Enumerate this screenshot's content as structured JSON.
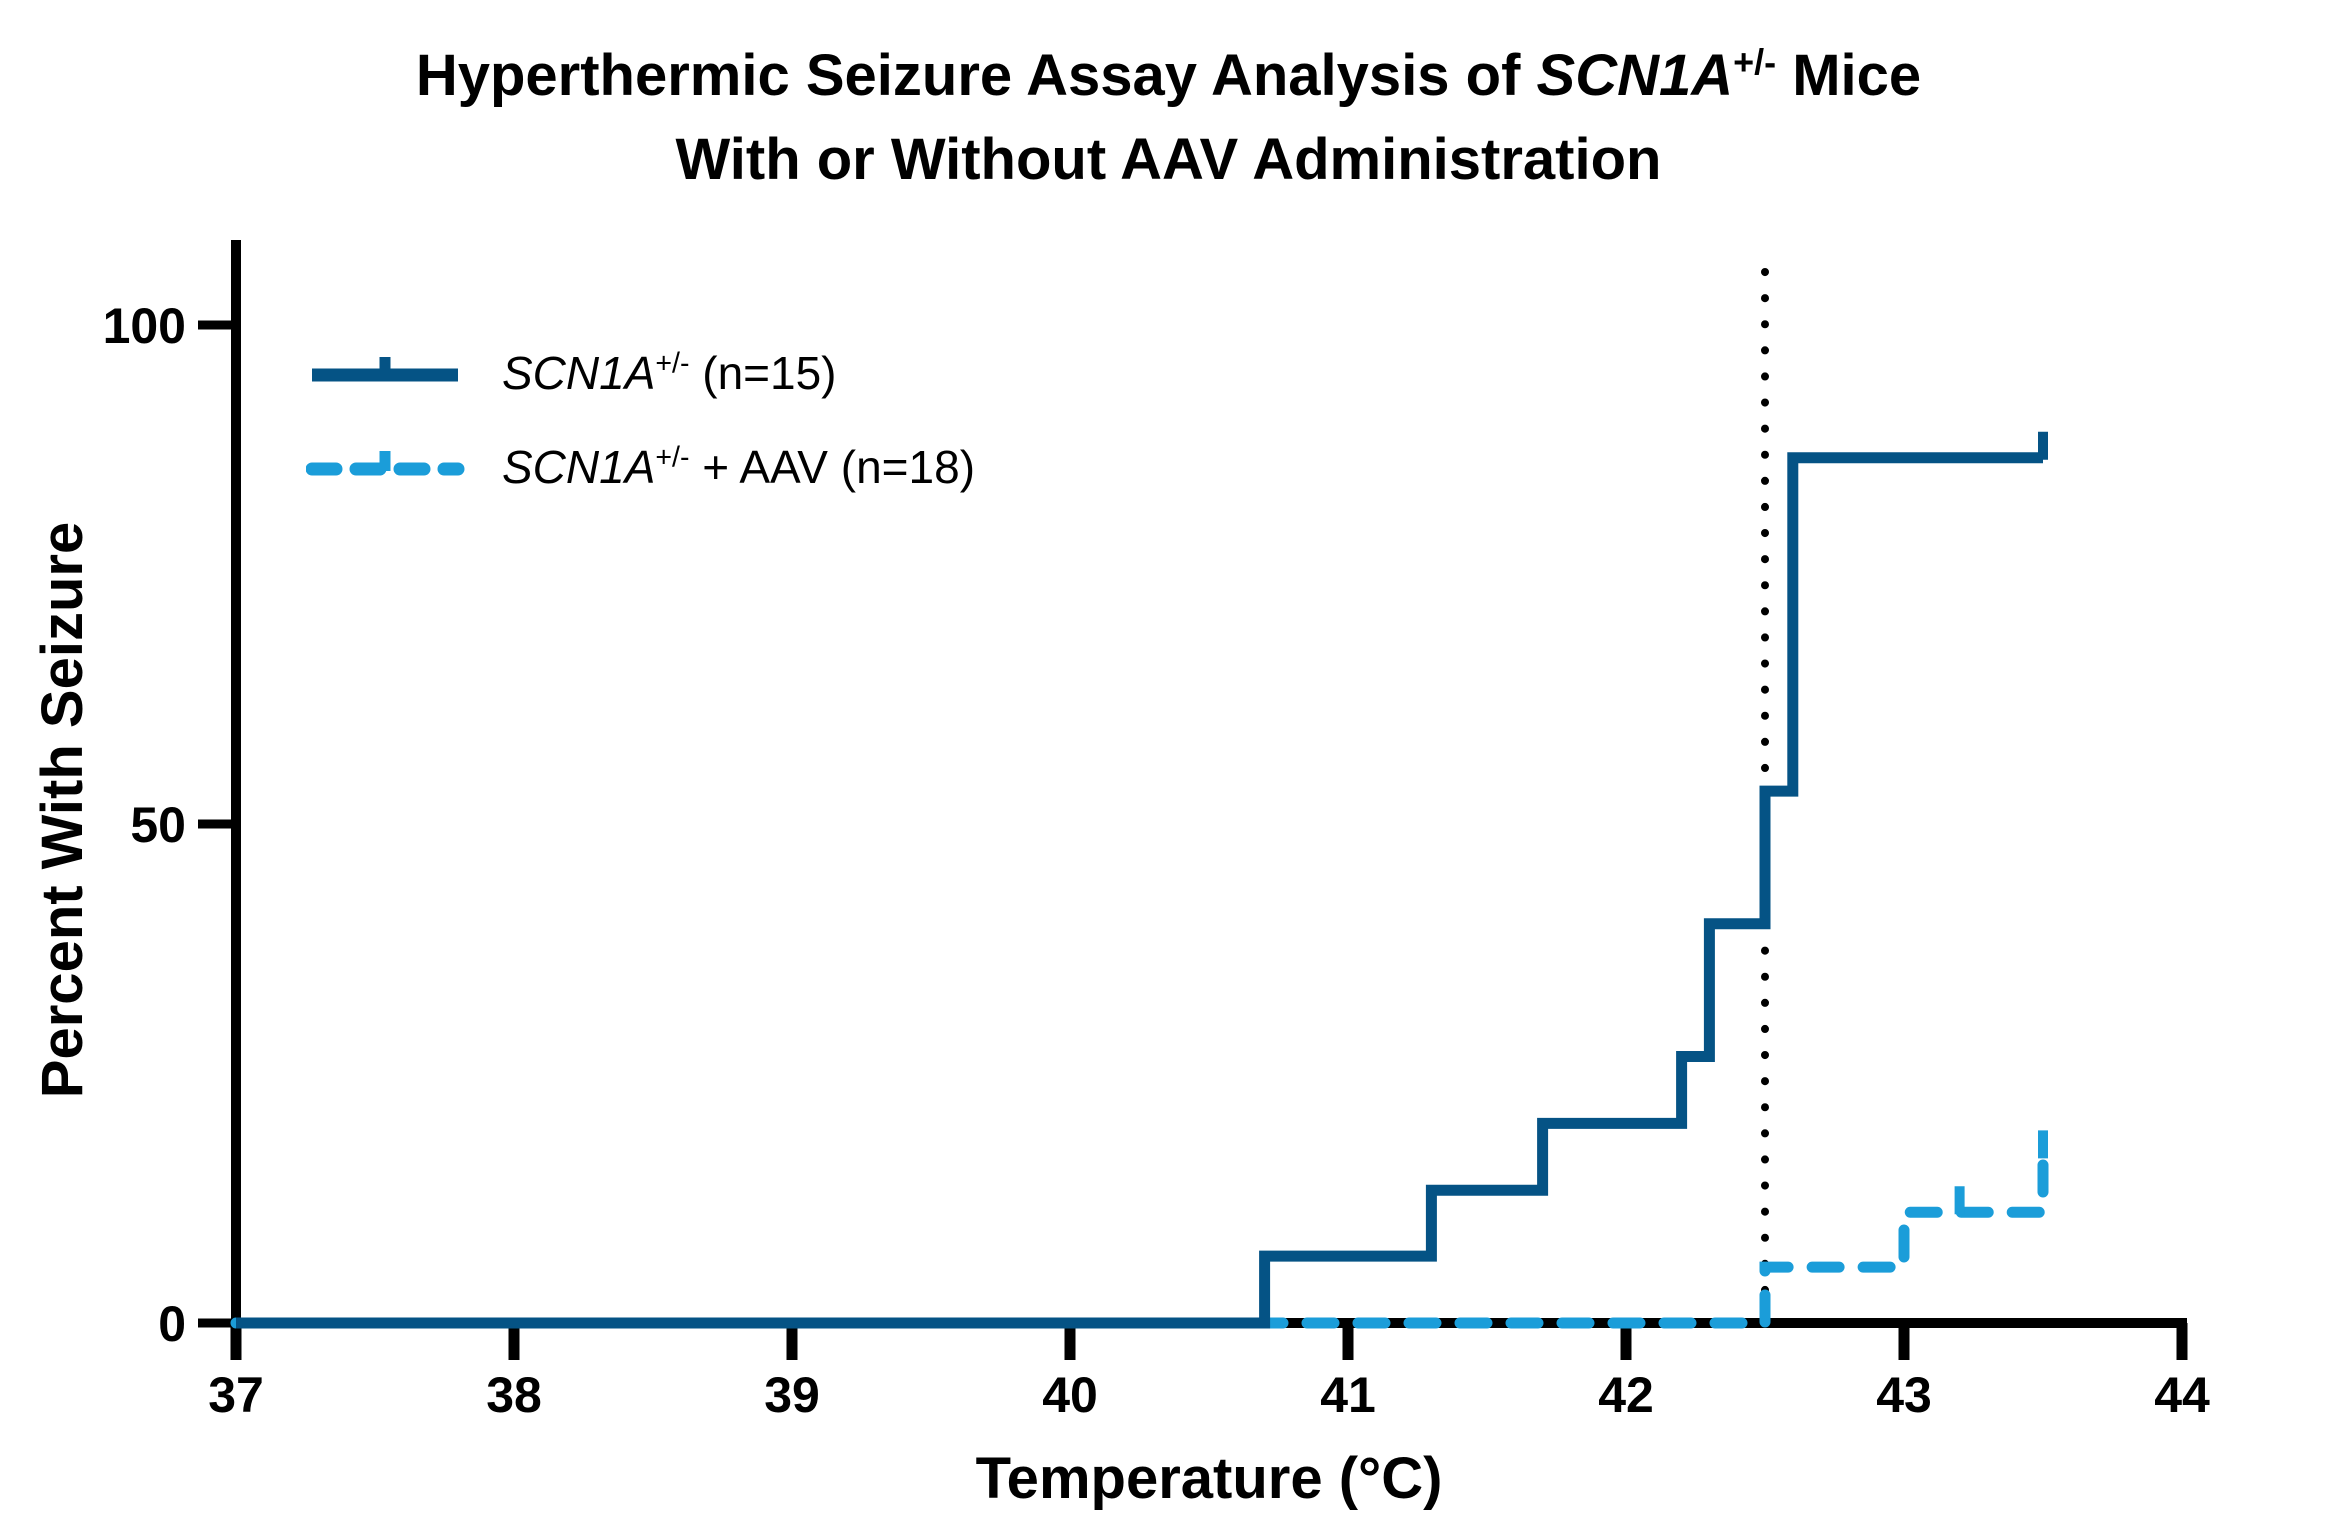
{
  "title": {
    "line1_prefix": "Hyperthermic Seizure Assay Analysis of ",
    "gene": "SCN1A",
    "sup": "+/-",
    "line1_suffix": " Mice",
    "line2": "With or Without AAV Administration"
  },
  "legend": [
    {
      "gene": "SCN1A",
      "sup": "+/-",
      "rest": " (n=15)",
      "color": "#055385",
      "line_style": "solid"
    },
    {
      "gene": "SCN1A",
      "sup": "+/-",
      "rest": " + AAV (n=18)",
      "color": "#1B9DD9",
      "line_style": "dashed"
    }
  ],
  "chart_data": {
    "type": "line",
    "subtype": "survival-step",
    "title": "Hyperthermic Seizure Assay Analysis of SCN1A+/- Mice With or Without AAV Administration",
    "xlabel": "Temperature (°C)",
    "ylabel": "Percent With Seizure",
    "xlim": [
      37,
      44
    ],
    "ylim": [
      0,
      105
    ],
    "x_ticks": [
      37,
      38,
      39,
      40,
      41,
      42,
      43,
      44
    ],
    "y_ticks": [
      0,
      50,
      100
    ],
    "grid": "off",
    "legend_position": "upper-left-inside",
    "reference_line": {
      "x": 42.5,
      "style": "dotted",
      "color": "#000000"
    },
    "series": [
      {
        "name": "SCN1A+/- (n=15)",
        "color": "#055385",
        "line_style": "solid",
        "x_start": 37,
        "x_end": 43.5,
        "steps": [
          {
            "x": 40.7,
            "y": 6.7
          },
          {
            "x": 41.3,
            "y": 13.3
          },
          {
            "x": 41.7,
            "y": 20.0
          },
          {
            "x": 42.2,
            "y": 26.7
          },
          {
            "x": 42.3,
            "y": 40.0
          },
          {
            "x": 42.5,
            "y": 53.3
          },
          {
            "x": 42.6,
            "y": 86.7
          }
        ],
        "censor_ticks": [
          {
            "x": 43.5,
            "y": 86.7
          }
        ]
      },
      {
        "name": "SCN1A+/- + AAV (n=18)",
        "color": "#1B9DD9",
        "line_style": "dashed",
        "x_start": 37,
        "x_end": 43.5,
        "steps": [
          {
            "x": 42.5,
            "y": 5.6
          },
          {
            "x": 43.0,
            "y": 11.1
          },
          {
            "x": 43.5,
            "y": 16.7
          }
        ],
        "censor_ticks": [
          {
            "x": 43.2,
            "y": 11.1
          },
          {
            "x": 43.5,
            "y": 16.7
          }
        ]
      }
    ]
  }
}
